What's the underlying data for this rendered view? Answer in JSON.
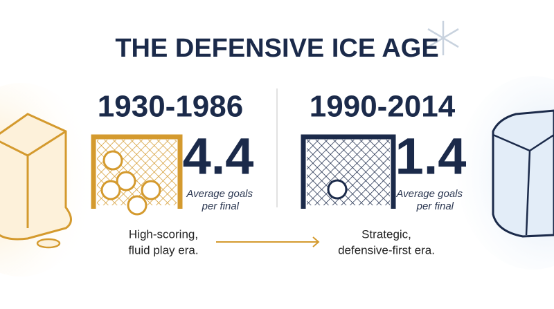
{
  "title": "THE DEFENSIVE ICE AGE",
  "eras": [
    {
      "period": "1930-1986",
      "value": 4.4,
      "caption_lines": [
        "Average goals",
        "per final"
      ],
      "description_lines": [
        "High-scoring,",
        "fluid play era."
      ]
    },
    {
      "period": "1990-2014",
      "value": 1.4,
      "caption_lines": [
        "Average goals",
        "per final"
      ],
      "description_lines": [
        "Strategic,",
        "defensive-first era."
      ]
    }
  ]
}
